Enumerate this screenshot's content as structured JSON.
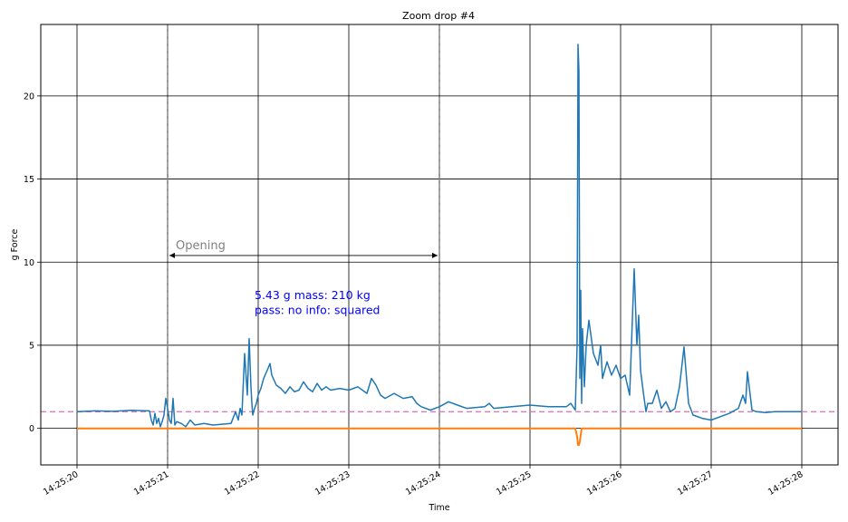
{
  "chart_data": {
    "type": "line",
    "title": "Zoom drop #4",
    "xlabel": "Time",
    "ylabel": "g Force",
    "xlim": [
      -0.4,
      8.4
    ],
    "ylim": [
      -2.2,
      24.3
    ],
    "x_ticks": [
      0,
      1,
      2,
      3,
      4,
      5,
      6,
      7,
      8
    ],
    "x_tick_labels": [
      "14:25:20",
      "14:25:21",
      "14:25:22",
      "14:25:23",
      "14:25:24",
      "14:25:25",
      "14:25:26",
      "14:25:27",
      "14:25:28"
    ],
    "y_ticks": [
      0,
      5,
      10,
      15,
      20
    ],
    "y_tick_labels": [
      "0",
      "5",
      "10",
      "15",
      "20"
    ],
    "grid": true,
    "reference_line": {
      "y": 1.0,
      "color": "#e377c2",
      "style": "dashed"
    },
    "markers": [
      {
        "x": 1.0,
        "color": "#808080",
        "style": "dashed"
      },
      {
        "x": 4.0,
        "color": "#808080",
        "style": "dashed"
      }
    ],
    "annotation": {
      "text": "Opening",
      "x_start": 1.0,
      "x_end": 4.0,
      "y": 10.4,
      "color": "#808080"
    },
    "info": {
      "line1": "5.43 g  mass: 210 kg",
      "line2": "pass: no  info: squared",
      "x": 1.96,
      "y_line1": 8.0,
      "y_line2": 7.1,
      "color": "#0000ff"
    },
    "series": [
      {
        "color": "#1f77b4",
        "x": [
          0,
          0.2,
          0.4,
          0.6,
          0.8,
          0.82,
          0.84,
          0.86,
          0.88,
          0.9,
          0.92,
          0.94,
          0.96,
          0.98,
          1.0,
          1.02,
          1.04,
          1.06,
          1.08,
          1.1,
          1.15,
          1.2,
          1.25,
          1.3,
          1.4,
          1.5,
          1.6,
          1.7,
          1.75,
          1.78,
          1.8,
          1.82,
          1.85,
          1.88,
          1.9,
          1.92,
          1.93,
          1.94,
          1.95,
          1.96,
          1.98,
          2.0,
          2.03,
          2.06,
          2.1,
          2.13,
          2.15,
          2.2,
          2.25,
          2.3,
          2.35,
          2.4,
          2.45,
          2.5,
          2.55,
          2.6,
          2.65,
          2.7,
          2.75,
          2.8,
          2.9,
          3.0,
          3.1,
          3.2,
          3.25,
          3.3,
          3.35,
          3.4,
          3.5,
          3.6,
          3.7,
          3.75,
          3.8,
          3.9,
          4.0,
          4.1,
          4.2,
          4.3,
          4.5,
          4.55,
          4.6,
          4.8,
          5.0,
          5.2,
          5.4,
          5.45,
          5.5,
          5.52,
          5.53,
          5.54,
          5.55,
          5.56,
          5.57,
          5.58,
          5.6,
          5.62,
          5.65,
          5.7,
          5.75,
          5.78,
          5.8,
          5.85,
          5.9,
          5.95,
          6.0,
          6.05,
          6.1,
          6.15,
          6.18,
          6.2,
          6.22,
          6.25,
          6.28,
          6.3,
          6.35,
          6.4,
          6.45,
          6.5,
          6.55,
          6.6,
          6.65,
          6.7,
          6.75,
          6.8,
          6.9,
          7.0,
          7.1,
          7.2,
          7.3,
          7.35,
          7.38,
          7.4,
          7.45,
          7.5,
          7.6,
          7.7,
          7.8,
          7.9,
          8.0
        ],
        "values": [
          1.0,
          1.05,
          1.02,
          1.08,
          1.05,
          0.5,
          0.2,
          0.9,
          0.3,
          0.6,
          0.1,
          0.4,
          0.8,
          1.8,
          1.2,
          0.5,
          0.3,
          1.8,
          0.2,
          0.4,
          0.3,
          0.1,
          0.5,
          0.2,
          0.3,
          0.2,
          0.25,
          0.3,
          1.0,
          0.5,
          1.2,
          0.8,
          4.5,
          2.0,
          5.4,
          2.5,
          1.5,
          0.8,
          1.0,
          1.2,
          1.5,
          2.0,
          2.4,
          3.0,
          3.5,
          3.9,
          3.2,
          2.6,
          2.4,
          2.1,
          2.5,
          2.2,
          2.3,
          2.8,
          2.4,
          2.2,
          2.7,
          2.3,
          2.5,
          2.3,
          2.4,
          2.3,
          2.5,
          2.1,
          3.0,
          2.6,
          2.0,
          1.8,
          2.1,
          1.8,
          1.9,
          1.5,
          1.3,
          1.1,
          1.3,
          1.6,
          1.4,
          1.2,
          1.3,
          1.5,
          1.2,
          1.3,
          1.4,
          1.3,
          1.3,
          1.5,
          1.1,
          5.0,
          23.1,
          21.5,
          3.0,
          8.3,
          1.5,
          6.0,
          2.5,
          5.0,
          6.5,
          4.5,
          3.8,
          5.0,
          3.0,
          4.0,
          3.2,
          3.8,
          3.0,
          3.2,
          2.0,
          9.6,
          5.0,
          6.8,
          3.5,
          2.2,
          1.0,
          1.5,
          1.5,
          2.3,
          1.2,
          1.6,
          1.0,
          1.2,
          2.5,
          4.9,
          1.5,
          0.8,
          0.6,
          0.5,
          0.7,
          0.9,
          1.2,
          2.0,
          1.5,
          3.4,
          1.1,
          1.0,
          0.95,
          1.0,
          1.0,
          1.0,
          1.0
        ]
      },
      {
        "color": "#ff7f0e",
        "x": [
          0,
          5.5,
          5.52,
          5.53,
          5.54,
          5.55,
          5.57,
          8.0
        ],
        "values": [
          0,
          0,
          -0.5,
          -1.0,
          -1.0,
          -0.8,
          0,
          0
        ]
      }
    ]
  }
}
